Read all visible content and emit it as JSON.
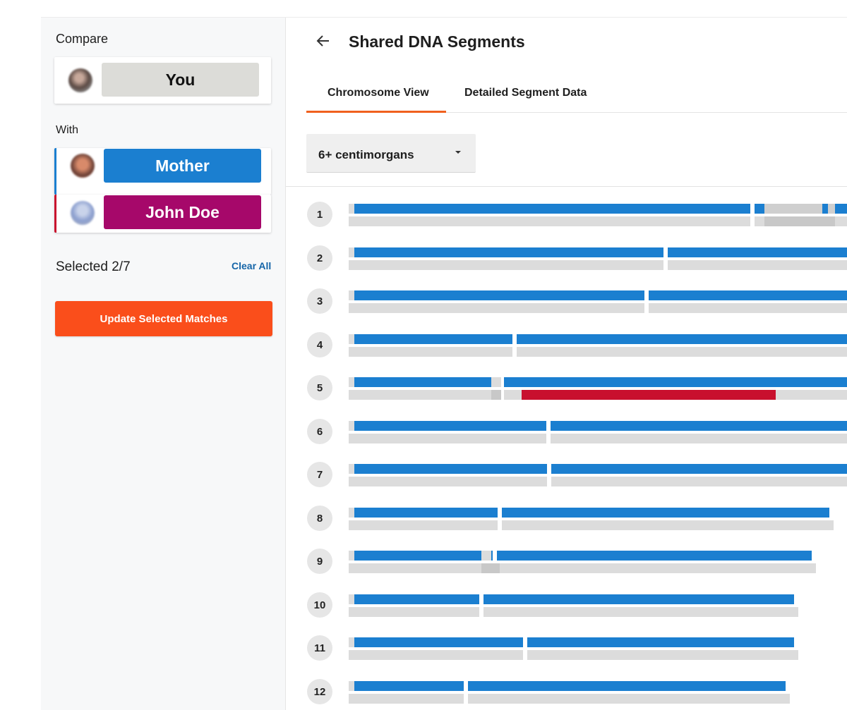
{
  "sidebar": {
    "compare_label": "Compare",
    "you": {
      "name": "You"
    },
    "with_label": "With",
    "matches": [
      {
        "name": "Mother",
        "color": "#1b7fd0"
      },
      {
        "name": "John Doe",
        "color": "#a6086a"
      }
    ],
    "selected_text": "Selected 2/7",
    "clear_all_label": "Clear All",
    "update_button_label": "Update Selected Matches"
  },
  "header": {
    "back_icon": "arrow-left-icon",
    "title": "Shared DNA Segments"
  },
  "tabs": [
    {
      "label": "Chromosome View",
      "active": true
    },
    {
      "label": "Detailed Segment Data",
      "active": false
    }
  ],
  "filter": {
    "selected": "6+ centimorgans",
    "icon": "caret-down-icon"
  },
  "colors": {
    "you": "#dcdcd8",
    "mother": "#1b7fd0",
    "john_doe": "#a6086a",
    "accent": "#fa4e1b",
    "segment_red": "#c8102e",
    "chromosome_base": "#dcdcdc"
  },
  "chromosomes": [
    {
      "number": "1"
    },
    {
      "number": "2"
    },
    {
      "number": "3"
    },
    {
      "number": "4"
    },
    {
      "number": "5"
    },
    {
      "number": "6"
    },
    {
      "number": "7"
    },
    {
      "number": "8"
    },
    {
      "number": "9"
    },
    {
      "number": "10"
    },
    {
      "number": "11"
    },
    {
      "number": "12"
    }
  ]
}
